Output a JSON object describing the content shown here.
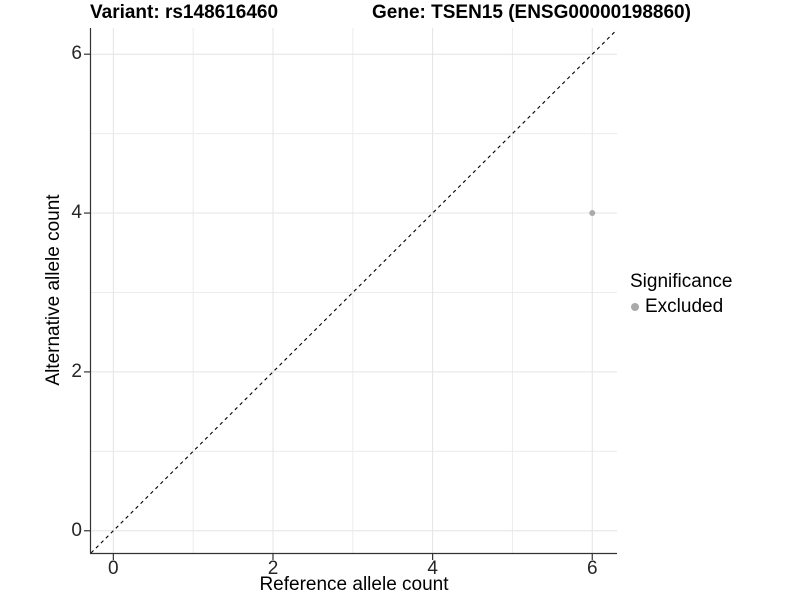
{
  "chart_data": {
    "type": "scatter",
    "title_left": "Variant: rs148616460",
    "title_right": "Gene: TSEN15 (ENSG00000198860)",
    "xlabel": "Reference allele count",
    "ylabel": "Alternative allele count",
    "xlim": [
      -0.28,
      6.31
    ],
    "ylim": [
      -0.28,
      6.33
    ],
    "xticks": [
      0,
      2,
      4,
      6
    ],
    "yticks": [
      0,
      2,
      4,
      6
    ],
    "xminor": [
      1,
      3,
      5
    ],
    "yminor": [
      1,
      3,
      5
    ],
    "grid": "on",
    "legend": {
      "title": "Significance",
      "position": "right",
      "items": [
        {
          "label": "Excluded",
          "color": "#aaaaaa"
        }
      ]
    },
    "identity_line": {
      "style": "dashed",
      "color": "#000000",
      "dash": [
        3.5,
        3.5
      ]
    },
    "series": [
      {
        "name": "Excluded",
        "color": "#aaaaaa",
        "point_radius": 3,
        "points": [
          [
            6,
            4
          ]
        ]
      }
    ],
    "colors": {
      "background": "#ffffff",
      "axis_line": "#333333",
      "axis_text": "#262626",
      "grid_major": "#e4e4e4",
      "grid_minor": "#ececec"
    }
  }
}
